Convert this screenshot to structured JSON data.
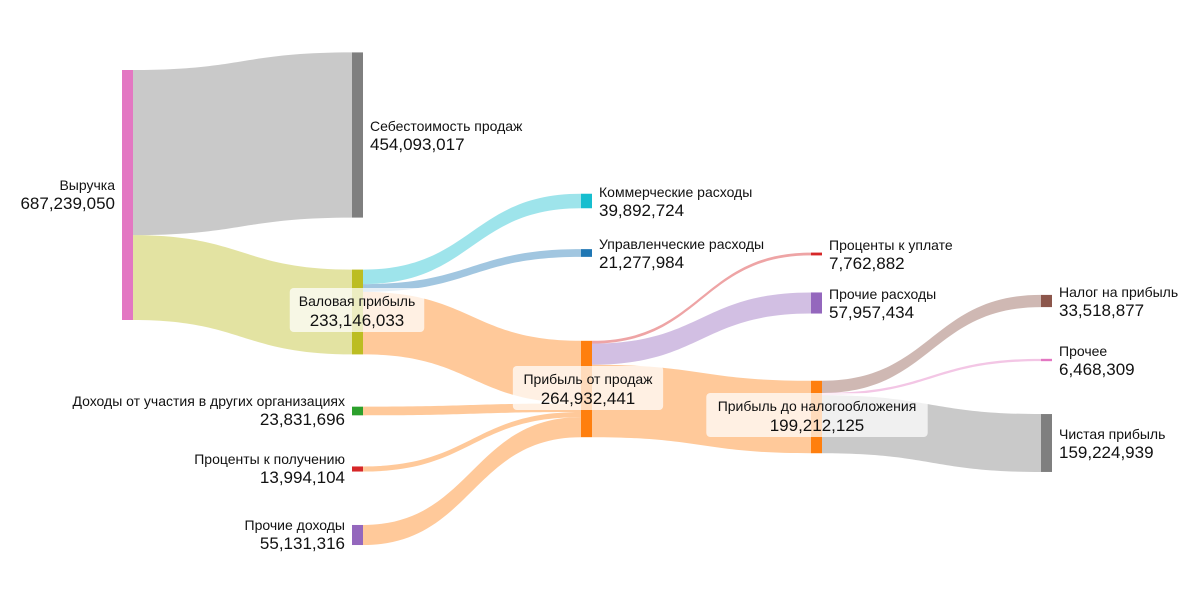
{
  "chart_data": {
    "type": "sankey",
    "title": "",
    "colors": {
      "revenue": "#e377c2",
      "cost_of_sales": "#7f7f7f",
      "gross_profit": "#bcbd22",
      "commercial": "#17becf",
      "admin": "#1f77b4",
      "operating_profit": "#ff7f0e",
      "equity_income": "#2ca02c",
      "interest_income": "#d62728",
      "other_income": "#9467bd",
      "interest_payable": "#d62728",
      "other_expenses": "#9467bd",
      "pretax_profit": "#ff7f0e",
      "income_tax": "#8c564b",
      "other": "#e377c2",
      "net_profit": "#7f7f7f"
    },
    "nodes": [
      {
        "id": "revenue",
        "name": "Выручка",
        "value": 687239050,
        "value_label": "687,239,050"
      },
      {
        "id": "cost_of_sales",
        "name": "Себестоимость продаж",
        "value": 454093017,
        "value_label": "454,093,017"
      },
      {
        "id": "gross_profit",
        "name": "Валовая прибыль",
        "value": 233146033,
        "value_label": "233,146,033"
      },
      {
        "id": "commercial",
        "name": "Коммерческие расходы",
        "value": 39892724,
        "value_label": "39,892,724"
      },
      {
        "id": "admin",
        "name": "Управленческие расходы",
        "value": 21277984,
        "value_label": "21,277,984"
      },
      {
        "id": "equity_income",
        "name": "Доходы от участия в других организациях",
        "value": 23831696,
        "value_label": "23,831,696"
      },
      {
        "id": "interest_income",
        "name": "Проценты к получению",
        "value": 13994104,
        "value_label": "13,994,104"
      },
      {
        "id": "other_income",
        "name": "Прочие доходы",
        "value": 55131316,
        "value_label": "55,131,316"
      },
      {
        "id": "operating_profit",
        "name": "Прибыль от продаж",
        "value": 264932441,
        "value_label": "264,932,441"
      },
      {
        "id": "interest_payable",
        "name": "Проценты к уплате",
        "value": 7762882,
        "value_label": "7,762,882"
      },
      {
        "id": "other_expenses",
        "name": "Прочие расходы",
        "value": 57957434,
        "value_label": "57,957,434"
      },
      {
        "id": "pretax_profit",
        "name": "Прибыль до налогообложения",
        "value": 199212125,
        "value_label": "199,212,125"
      },
      {
        "id": "income_tax",
        "name": "Налог на прибыль",
        "value": 33518877,
        "value_label": "33,518,877"
      },
      {
        "id": "other",
        "name": "Прочее",
        "value": 6468309,
        "value_label": "6,468,309"
      },
      {
        "id": "net_profit",
        "name": "Чистая прибыль",
        "value": 159224939,
        "value_label": "159,224,939"
      }
    ],
    "links": [
      {
        "source": "revenue",
        "target": "cost_of_sales",
        "value": 454093017
      },
      {
        "source": "revenue",
        "target": "gross_profit",
        "value": 233146033
      },
      {
        "source": "gross_profit",
        "target": "commercial",
        "value": 39892724
      },
      {
        "source": "gross_profit",
        "target": "admin",
        "value": 21277984
      },
      {
        "source": "gross_profit",
        "target": "operating_profit",
        "value": 171975325
      },
      {
        "source": "equity_income",
        "target": "operating_profit",
        "value": 23831696
      },
      {
        "source": "interest_income",
        "target": "operating_profit",
        "value": 13994104
      },
      {
        "source": "other_income",
        "target": "operating_profit",
        "value": 55131316
      },
      {
        "source": "operating_profit",
        "target": "interest_payable",
        "value": 7762882
      },
      {
        "source": "operating_profit",
        "target": "other_expenses",
        "value": 57957434
      },
      {
        "source": "operating_profit",
        "target": "pretax_profit",
        "value": 199212125
      },
      {
        "source": "pretax_profit",
        "target": "income_tax",
        "value": 33518877
      },
      {
        "source": "pretax_profit",
        "target": "other",
        "value": 6468309
      },
      {
        "source": "pretax_profit",
        "target": "net_profit",
        "value": 159224939
      }
    ]
  }
}
